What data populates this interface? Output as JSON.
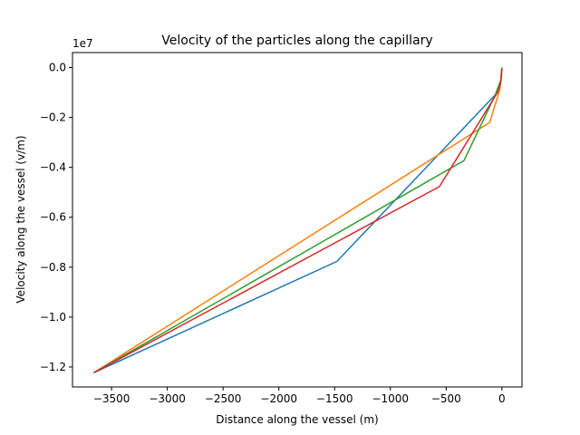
{
  "chart_data": {
    "type": "line",
    "title": "Velocity of the particles along the capillary",
    "xlabel": "Distance along the vessel (m)",
    "ylabel": "Velocity along the vessel (v/m)",
    "y_offset_label": "1e7",
    "y_scale_factor": 10000000,
    "xlim": [
      -3850,
      180
    ],
    "ylim": [
      -12800000.0,
      600000.0
    ],
    "x_ticks": [
      {
        "value": -3500,
        "label": "−3500"
      },
      {
        "value": -3000,
        "label": "−3000"
      },
      {
        "value": -2500,
        "label": "−2500"
      },
      {
        "value": -2000,
        "label": "−2000"
      },
      {
        "value": -1500,
        "label": "−1500"
      },
      {
        "value": -1000,
        "label": "−1000"
      },
      {
        "value": -500,
        "label": "−500"
      },
      {
        "value": 0,
        "label": "0"
      }
    ],
    "y_ticks": [
      {
        "value": 0,
        "label": "0.0"
      },
      {
        "value": -2000000,
        "label": "−0.2"
      },
      {
        "value": -4000000,
        "label": "−0.4"
      },
      {
        "value": -6000000,
        "label": "−0.6"
      },
      {
        "value": -8000000,
        "label": "−0.8"
      },
      {
        "value": -10000000,
        "label": "−1.0"
      },
      {
        "value": -12000000,
        "label": "−1.2"
      }
    ],
    "grid": false,
    "legend": "none",
    "series": [
      {
        "color": "#1f77b4",
        "points": [
          [
            -3660,
            -12230000
          ],
          [
            -1480,
            -7770000
          ],
          [
            -40,
            -1000000
          ],
          [
            -8,
            -450000
          ],
          [
            0,
            0
          ]
        ]
      },
      {
        "color": "#ff7f0e",
        "points": [
          [
            -3660,
            -12230000
          ],
          [
            -110,
            -2200000
          ],
          [
            -20,
            -900000
          ],
          [
            -4,
            -350000
          ],
          [
            0,
            0
          ]
        ]
      },
      {
        "color": "#2ca02c",
        "points": [
          [
            -3660,
            -12230000
          ],
          [
            -340,
            -3730000
          ],
          [
            -60,
            -1100000
          ],
          [
            -10,
            -500000
          ],
          [
            0,
            0
          ]
        ]
      },
      {
        "color": "#d62728",
        "points": [
          [
            -3660,
            -12230000
          ],
          [
            -560,
            -4770000
          ],
          [
            -40,
            -1000000
          ],
          [
            -10,
            -600000
          ],
          [
            0,
            0
          ]
        ]
      }
    ]
  }
}
